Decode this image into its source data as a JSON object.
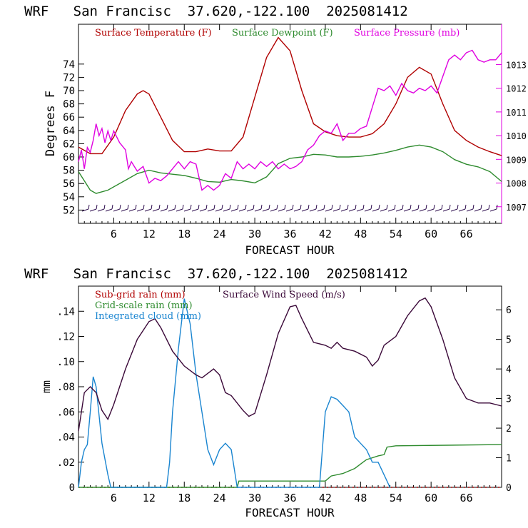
{
  "chart_data": [
    {
      "type": "line",
      "title": "WRF   San Francisc  37.620,-122.100  2025081412",
      "xlabel": "FORECAST HOUR",
      "ylabel": "Degrees F",
      "xlim": [
        0,
        72
      ],
      "xticks": [
        6,
        12,
        18,
        24,
        30,
        36,
        42,
        48,
        54,
        60,
        66
      ],
      "ylim_left": [
        50,
        80
      ],
      "yticks_left": [
        52,
        54,
        56,
        58,
        60,
        62,
        64,
        66,
        68,
        70,
        72,
        74
      ],
      "ylim_right": [
        1006.3,
        1014.7
      ],
      "yticks_right": [
        1007,
        1008,
        1009,
        1010,
        1011,
        1012,
        1013
      ],
      "legend_position": "top",
      "series": [
        {
          "name": "Surface Temperature (F)",
          "color": "#b00000",
          "axis": "left",
          "points": [
            [
              0,
              61.5
            ],
            [
              2,
              60.5
            ],
            [
              4,
              60.5
            ],
            [
              6,
              63
            ],
            [
              8,
              67
            ],
            [
              10,
              69.5
            ],
            [
              11,
              70
            ],
            [
              12,
              69.5
            ],
            [
              14,
              66
            ],
            [
              16,
              62.5
            ],
            [
              18,
              60.8
            ],
            [
              20,
              60.8
            ],
            [
              22,
              61.2
            ],
            [
              24,
              60.9
            ],
            [
              26,
              60.9
            ],
            [
              28,
              63
            ],
            [
              30,
              69
            ],
            [
              32,
              75
            ],
            [
              34,
              78
            ],
            [
              36,
              76
            ],
            [
              38,
              70
            ],
            [
              40,
              65
            ],
            [
              42,
              63.8
            ],
            [
              44,
              63.2
            ],
            [
              46,
              63
            ],
            [
              48,
              63
            ],
            [
              50,
              63.5
            ],
            [
              52,
              65
            ],
            [
              54,
              68
            ],
            [
              56,
              72
            ],
            [
              58,
              73.5
            ],
            [
              60,
              72.5
            ],
            [
              62,
              68
            ],
            [
              64,
              64
            ],
            [
              66,
              62.5
            ],
            [
              68,
              61.5
            ],
            [
              70,
              60.8
            ],
            [
              72,
              60.2
            ]
          ]
        },
        {
          "name": "Surface Dewpoint (F)",
          "color": "#2e8b2e",
          "axis": "left",
          "points": [
            [
              0,
              57.8
            ],
            [
              2,
              55
            ],
            [
              3,
              54.5
            ],
            [
              5,
              55
            ],
            [
              8,
              56.5
            ],
            [
              10,
              57.5
            ],
            [
              12,
              58
            ],
            [
              14,
              57.6
            ],
            [
              16,
              57.4
            ],
            [
              18,
              57.2
            ],
            [
              20,
              56.8
            ],
            [
              22,
              56.3
            ],
            [
              24,
              56.2
            ],
            [
              26,
              56.6
            ],
            [
              28,
              56.4
            ],
            [
              30,
              56.1
            ],
            [
              32,
              57
            ],
            [
              34,
              59
            ],
            [
              36,
              59.8
            ],
            [
              38,
              60
            ],
            [
              40,
              60.4
            ],
            [
              42,
              60.3
            ],
            [
              44,
              60
            ],
            [
              46,
              60
            ],
            [
              48,
              60.1
            ],
            [
              50,
              60.3
            ],
            [
              52,
              60.6
            ],
            [
              54,
              61
            ],
            [
              56,
              61.5
            ],
            [
              58,
              61.8
            ],
            [
              60,
              61.5
            ],
            [
              62,
              60.8
            ],
            [
              64,
              59.6
            ],
            [
              66,
              58.9
            ],
            [
              68,
              58.5
            ],
            [
              70,
              57.8
            ],
            [
              72,
              56.3
            ]
          ]
        },
        {
          "name": "Surface Pressure (mb)",
          "color": "#e000e0",
          "axis": "right",
          "points": [
            [
              0,
              1008.9
            ],
            [
              0.5,
              1009.4
            ],
            [
              1,
              1008.6
            ],
            [
              1.5,
              1009.5
            ],
            [
              2,
              1009.3
            ],
            [
              2.5,
              1009.8
            ],
            [
              3,
              1010.5
            ],
            [
              3.5,
              1010
            ],
            [
              4,
              1010.3
            ],
            [
              4.5,
              1009.7
            ],
            [
              5,
              1010.2
            ],
            [
              5.5,
              1009.8
            ],
            [
              6,
              1010.2
            ],
            [
              7,
              1009.7
            ],
            [
              8,
              1009.4
            ],
            [
              8.5,
              1008.6
            ],
            [
              9,
              1008.9
            ],
            [
              10,
              1008.5
            ],
            [
              11,
              1008.7
            ],
            [
              12,
              1008
            ],
            [
              13,
              1008.2
            ],
            [
              14,
              1008.1
            ],
            [
              15,
              1008.3
            ],
            [
              16,
              1008.6
            ],
            [
              17,
              1008.9
            ],
            [
              18,
              1008.6
            ],
            [
              19,
              1008.9
            ],
            [
              20,
              1008.8
            ],
            [
              21,
              1007.7
            ],
            [
              22,
              1007.9
            ],
            [
              23,
              1007.7
            ],
            [
              24,
              1007.9
            ],
            [
              25,
              1008.4
            ],
            [
              26,
              1008.2
            ],
            [
              27,
              1008.9
            ],
            [
              28,
              1008.6
            ],
            [
              29,
              1008.8
            ],
            [
              30,
              1008.6
            ],
            [
              31,
              1008.9
            ],
            [
              32,
              1008.7
            ],
            [
              33,
              1008.9
            ],
            [
              34,
              1008.6
            ],
            [
              35,
              1008.8
            ],
            [
              36,
              1008.6
            ],
            [
              37,
              1008.7
            ],
            [
              38,
              1008.9
            ],
            [
              39,
              1009.4
            ],
            [
              40,
              1009.6
            ],
            [
              41,
              1010
            ],
            [
              42,
              1010.2
            ],
            [
              43,
              1010.1
            ],
            [
              44,
              1010.5
            ],
            [
              45,
              1009.8
            ],
            [
              46,
              1010.1
            ],
            [
              47,
              1010.1
            ],
            [
              48,
              1010.3
            ],
            [
              49,
              1010.4
            ],
            [
              50,
              1011.2
            ],
            [
              51,
              1012
            ],
            [
              52,
              1011.9
            ],
            [
              53,
              1012.1
            ],
            [
              54,
              1011.7
            ],
            [
              55,
              1012.2
            ],
            [
              56,
              1011.9
            ],
            [
              57,
              1011.8
            ],
            [
              58,
              1012
            ],
            [
              59,
              1011.9
            ],
            [
              60,
              1012.1
            ],
            [
              61,
              1011.8
            ],
            [
              62,
              1012.5
            ],
            [
              63,
              1013.2
            ],
            [
              64,
              1013.4
            ],
            [
              65,
              1013.2
            ],
            [
              66,
              1013.5
            ],
            [
              67,
              1013.6
            ],
            [
              68,
              1013.2
            ],
            [
              69,
              1013.1
            ],
            [
              70,
              1013.2
            ],
            [
              71,
              1013.2
            ],
            [
              72,
              1013.5
            ]
          ]
        }
      ]
    },
    {
      "type": "line",
      "title": "WRF   San Francisc  37.620,-122.100  2025081412",
      "xlabel": "FORECAST HOUR",
      "ylabel": "mm",
      "xlim": [
        0,
        72
      ],
      "xticks": [
        6,
        12,
        18,
        24,
        30,
        36,
        42,
        48,
        54,
        60,
        66
      ],
      "ylim_left": [
        0,
        0.16
      ],
      "yticks_left": [
        0,
        0.02,
        0.04,
        0.06,
        0.08,
        0.1,
        0.12,
        0.14
      ],
      "ytick_labels_left": [
        "0",
        ".02",
        ".04",
        ".06",
        ".08",
        ".10",
        ".12",
        ".14"
      ],
      "ylim_right": [
        0,
        6.8
      ],
      "yticks_right": [
        0,
        1,
        2,
        3,
        4,
        5,
        6
      ],
      "legend_position": "top-left",
      "series": [
        {
          "name": "Sub-grid rain (mm)",
          "color": "#b00000",
          "axis": "left",
          "points": [
            [
              0,
              0
            ],
            [
              72,
              0
            ]
          ]
        },
        {
          "name": "Grid-scale rain (mm)",
          "color": "#2e8b2e",
          "axis": "left",
          "points": [
            [
              0,
              0
            ],
            [
              27,
              0
            ],
            [
              27.3,
              0.005
            ],
            [
              42,
              0.005
            ],
            [
              43,
              0.009
            ],
            [
              45,
              0.011
            ],
            [
              47,
              0.015
            ],
            [
              49,
              0.022
            ],
            [
              51,
              0.025
            ],
            [
              52,
              0.026
            ],
            [
              52.5,
              0.032
            ],
            [
              54,
              0.033
            ],
            [
              72,
              0.034
            ]
          ]
        },
        {
          "name": "Integrated cloud (mm)",
          "color": "#1a85d0",
          "axis": "left",
          "points": [
            [
              0,
              0
            ],
            [
              0.5,
              0.02
            ],
            [
              1,
              0.03
            ],
            [
              1.5,
              0.034
            ],
            [
              2,
              0.06
            ],
            [
              2.5,
              0.088
            ],
            [
              3,
              0.08
            ],
            [
              4,
              0.035
            ],
            [
              5,
              0.01
            ],
            [
              5.5,
              0
            ],
            [
              15,
              0
            ],
            [
              15.5,
              0.02
            ],
            [
              16,
              0.06
            ],
            [
              17,
              0.11
            ],
            [
              18,
              0.15
            ],
            [
              19,
              0.13
            ],
            [
              20,
              0.09
            ],
            [
              21,
              0.06
            ],
            [
              22,
              0.03
            ],
            [
              23,
              0.018
            ],
            [
              24,
              0.03
            ],
            [
              25,
              0.035
            ],
            [
              26,
              0.03
            ],
            [
              27,
              0
            ],
            [
              41,
              0
            ],
            [
              41.5,
              0.03
            ],
            [
              42,
              0.06
            ],
            [
              43,
              0.072
            ],
            [
              44,
              0.07
            ],
            [
              45,
              0.065
            ],
            [
              46,
              0.06
            ],
            [
              47,
              0.04
            ],
            [
              48,
              0.035
            ],
            [
              49,
              0.03
            ],
            [
              50,
              0.02
            ],
            [
              51,
              0.02
            ],
            [
              52,
              0.01
            ],
            [
              53,
              0
            ]
          ]
        },
        {
          "name": "Surface Wind Speed (m/s)",
          "color": "#3a0838",
          "axis": "right",
          "points": [
            [
              0,
              1.9
            ],
            [
              1,
              3.2
            ],
            [
              2,
              3.4
            ],
            [
              3,
              3.2
            ],
            [
              4,
              2.6
            ],
            [
              5,
              2.3
            ],
            [
              6,
              2.8
            ],
            [
              8,
              4
            ],
            [
              10,
              5
            ],
            [
              12,
              5.6
            ],
            [
              13,
              5.7
            ],
            [
              14,
              5.4
            ],
            [
              16,
              4.6
            ],
            [
              18,
              4.1
            ],
            [
              20,
              3.8
            ],
            [
              21,
              3.7
            ],
            [
              23,
              4.0
            ],
            [
              24,
              3.8
            ],
            [
              25,
              3.2
            ],
            [
              26,
              3.1
            ],
            [
              28,
              2.6
            ],
            [
              29,
              2.4
            ],
            [
              30,
              2.5
            ],
            [
              32,
              3.8
            ],
            [
              34,
              5.2
            ],
            [
              36,
              6.1
            ],
            [
              37,
              6.15
            ],
            [
              38,
              5.7
            ],
            [
              40,
              4.9
            ],
            [
              42,
              4.8
            ],
            [
              43,
              4.7
            ],
            [
              44,
              4.9
            ],
            [
              45,
              4.7
            ],
            [
              47,
              4.6
            ],
            [
              49,
              4.4
            ],
            [
              50,
              4.1
            ],
            [
              51,
              4.3
            ],
            [
              52,
              4.8
            ],
            [
              54,
              5.1
            ],
            [
              56,
              5.8
            ],
            [
              58,
              6.3
            ],
            [
              59,
              6.4
            ],
            [
              60,
              6.1
            ],
            [
              62,
              5
            ],
            [
              64,
              3.7
            ],
            [
              66,
              3.0
            ],
            [
              68,
              2.85
            ],
            [
              70,
              2.85
            ],
            [
              72,
              2.75
            ]
          ]
        }
      ]
    }
  ]
}
